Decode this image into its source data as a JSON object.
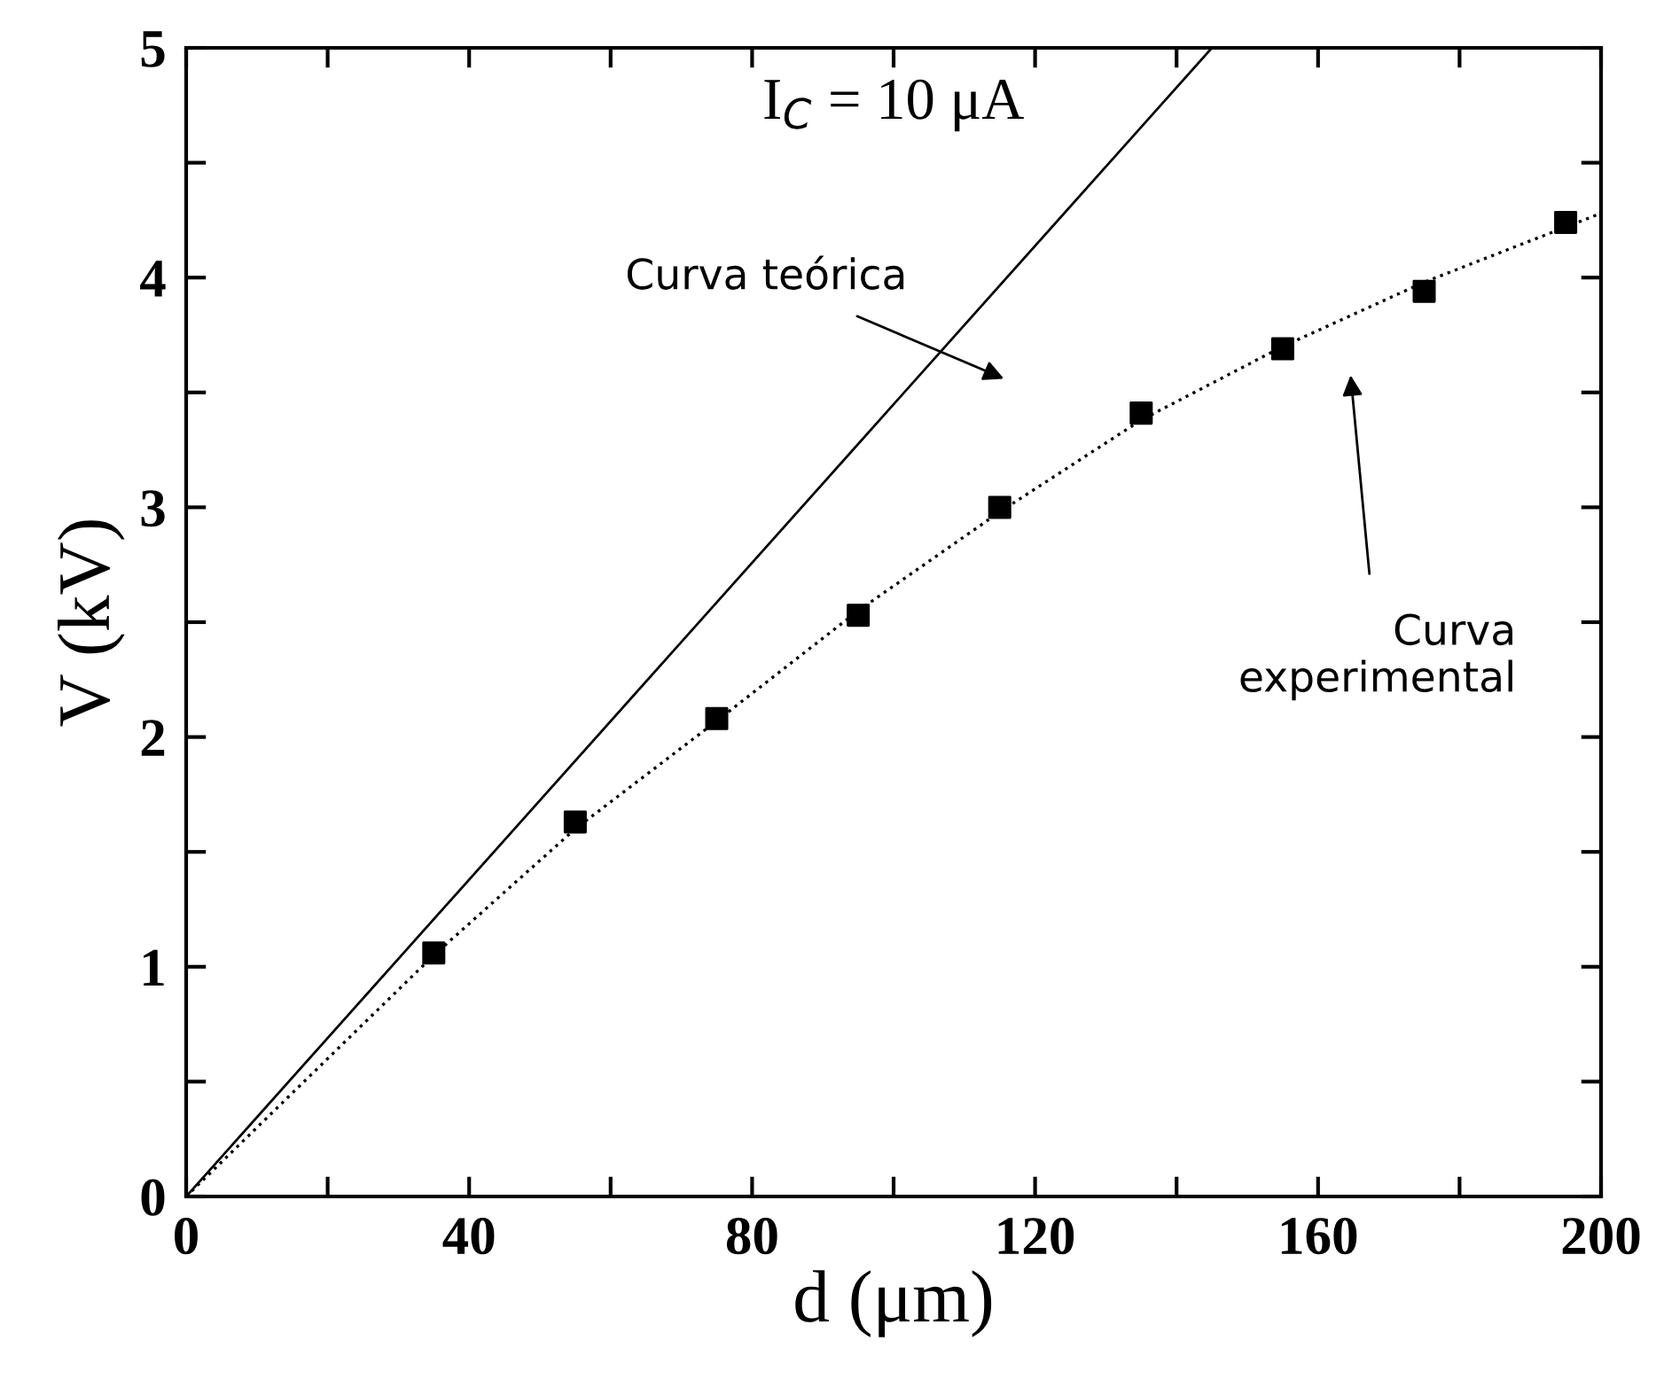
{
  "chart_data": {
    "type": "scatter",
    "xlabel": "d (μm)",
    "ylabel": "V (kV)",
    "xlim": [
      0,
      200
    ],
    "ylim": [
      0,
      5
    ],
    "xticks": [
      0,
      {
        "value": 20,
        "label": null
      },
      40,
      {
        "value": 60,
        "label": null
      },
      80,
      {
        "value": 100,
        "label": null
      },
      120,
      {
        "value": 140,
        "label": null
      },
      160,
      {
        "value": 180,
        "label": null
      },
      200
    ],
    "yticks": [
      0,
      {
        "value": 0.5,
        "label": null
      },
      1,
      {
        "value": 1.5,
        "label": null
      },
      2,
      {
        "value": 2.5,
        "label": null
      },
      3,
      {
        "value": 3.5,
        "label": null
      },
      4,
      {
        "value": 4.5,
        "label": null
      },
      5
    ],
    "grid": false,
    "legend": false,
    "series": [
      {
        "type": "line",
        "color": "#000000",
        "line_style": "solid",
        "marker": "none",
        "x": [
          0,
          145
        ],
        "values": [
          0,
          5
        ]
      },
      {
        "type": "line",
        "color": "#000000",
        "line_style": "dotted",
        "marker": "none",
        "x": [
          0,
          35,
          55,
          75,
          95,
          115,
          135,
          155,
          175,
          200
        ],
        "values": [
          0,
          1.05,
          1.6,
          2.07,
          2.55,
          2.98,
          3.38,
          3.7,
          3.98,
          4.28
        ]
      },
      {
        "color": "#000000",
        "marker": "square",
        "x": [
          35,
          55,
          75,
          95,
          115,
          135,
          155,
          175,
          195
        ],
        "values": [
          1.06,
          1.63,
          2.08,
          2.53,
          3.0,
          3.41,
          3.69,
          3.94,
          4.24
        ]
      }
    ],
    "annotations": [
      "I$_{C}$ = 10 μA",
      "Curva teórica",
      "Curva\nexperimental"
    ]
  }
}
